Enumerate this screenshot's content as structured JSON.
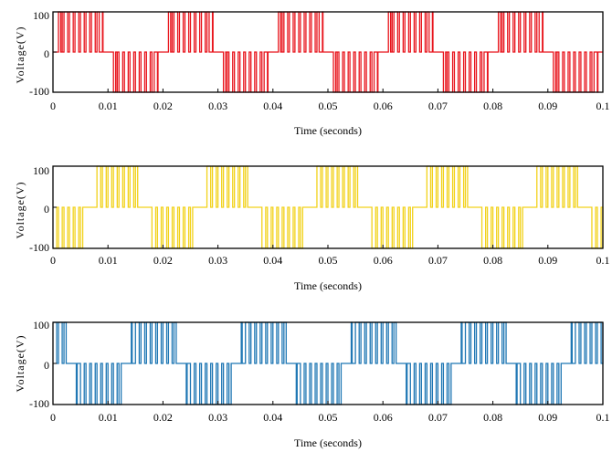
{
  "chart_data": [
    {
      "type": "line",
      "xlabel": "Time (seconds)",
      "ylabel": "Voltage(V)",
      "xlim": [
        0,
        0.1
      ],
      "ylim": [
        -100,
        100
      ],
      "x_ticks": [
        "0",
        "0.01",
        "0.02",
        "0.03",
        "0.04",
        "0.05",
        "0.06",
        "0.07",
        "0.08",
        "0.09",
        "0.1"
      ],
      "y_ticks": [
        "100",
        "0",
        "-100"
      ],
      "grid": false,
      "color": "#e8141c",
      "amplitude": 100,
      "frequency_hz": 50,
      "phase_deg": 0,
      "series": [
        {
          "values_description_free": true
        }
      ]
    },
    {
      "type": "line",
      "xlabel": "Time (seconds)",
      "ylabel": "Voltage(V)",
      "xlim": [
        0,
        0.1
      ],
      "ylim": [
        -100,
        100
      ],
      "x_ticks": [
        "0",
        "0.01",
        "0.02",
        "0.03",
        "0.04",
        "0.05",
        "0.06",
        "0.07",
        "0.08",
        "0.09",
        "0.1"
      ],
      "y_ticks": [
        "100",
        "0",
        "-100"
      ],
      "grid": false,
      "color": "#f2d21a",
      "amplitude": 100,
      "frequency_hz": 50,
      "phase_deg": -120,
      "series": [
        {
          "values_description_free": true
        }
      ]
    },
    {
      "type": "line",
      "xlabel": "Time (seconds)",
      "ylabel": "Voltage(V)",
      "xlim": [
        0,
        0.1
      ],
      "ylim": [
        -100,
        100
      ],
      "x_ticks": [
        "0",
        "0.01",
        "0.02",
        "0.03",
        "0.04",
        "0.05",
        "0.06",
        "0.07",
        "0.08",
        "0.09",
        "0.1"
      ],
      "y_ticks": [
        "100",
        "0",
        "-100"
      ],
      "grid": false,
      "color": "#1f77b4",
      "amplitude": 100,
      "frequency_hz": 50,
      "phase_deg": 120,
      "series": [
        {
          "values_description_free": true
        }
      ]
    }
  ]
}
